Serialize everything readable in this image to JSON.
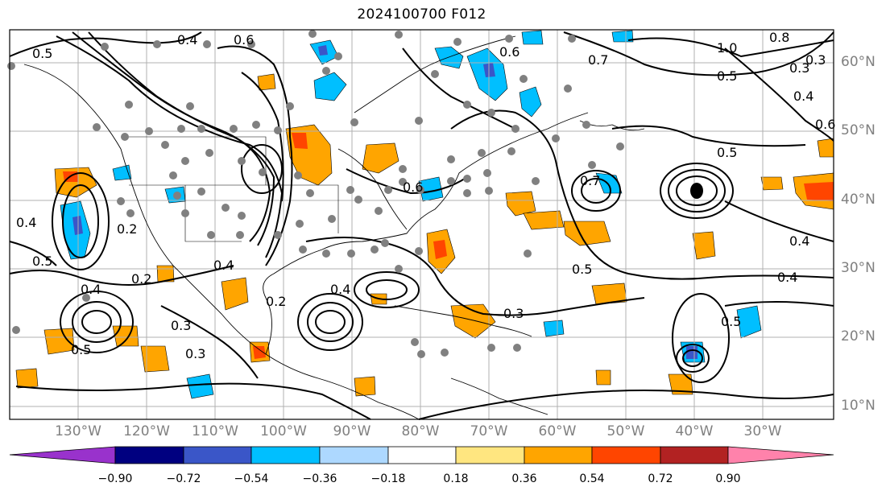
{
  "title": "2024100700 F012",
  "lat_labels": [
    "60°N",
    "50°N",
    "40°N",
    "30°N",
    "20°N",
    "10°N"
  ],
  "lon_labels": [
    "130°W",
    "120°W",
    "110°W",
    "100°W",
    "90°W",
    "80°W",
    "70°W",
    "60°W",
    "50°W",
    "40°W",
    "30°W"
  ],
  "colorbar": {
    "ticks": [
      "−0.90",
      "−0.72",
      "−0.54",
      "−0.36",
      "−0.18",
      "0.18",
      "0.36",
      "0.54",
      "0.72",
      "0.90"
    ],
    "colors": [
      "#9932cc",
      "#000080",
      "#3a56c8",
      "#00bfff",
      "#add8ff",
      "#ffffff",
      "#ffe680",
      "#ffa500",
      "#ff4500",
      "#b22222",
      "#ff82ab"
    ]
  },
  "contour_labels": [
    "0.4",
    "0.6",
    "0.5",
    "0.3",
    "0.2",
    "0.6",
    "1.0",
    "0.8",
    "0.3",
    "0.5",
    "0.4",
    "0.7",
    "0.6",
    "0.4",
    "0.5",
    "0.2",
    "0.4",
    "0.5",
    "0.3",
    "0.3",
    "0.4",
    "0.5",
    "0.2",
    "0.4",
    "0.3",
    "0.4",
    "0.5",
    "0.6",
    "0.7",
    "0.5",
    "0.4"
  ],
  "markers": {
    "dot_color": "#808080",
    "center_marker_color": "#000000"
  }
}
